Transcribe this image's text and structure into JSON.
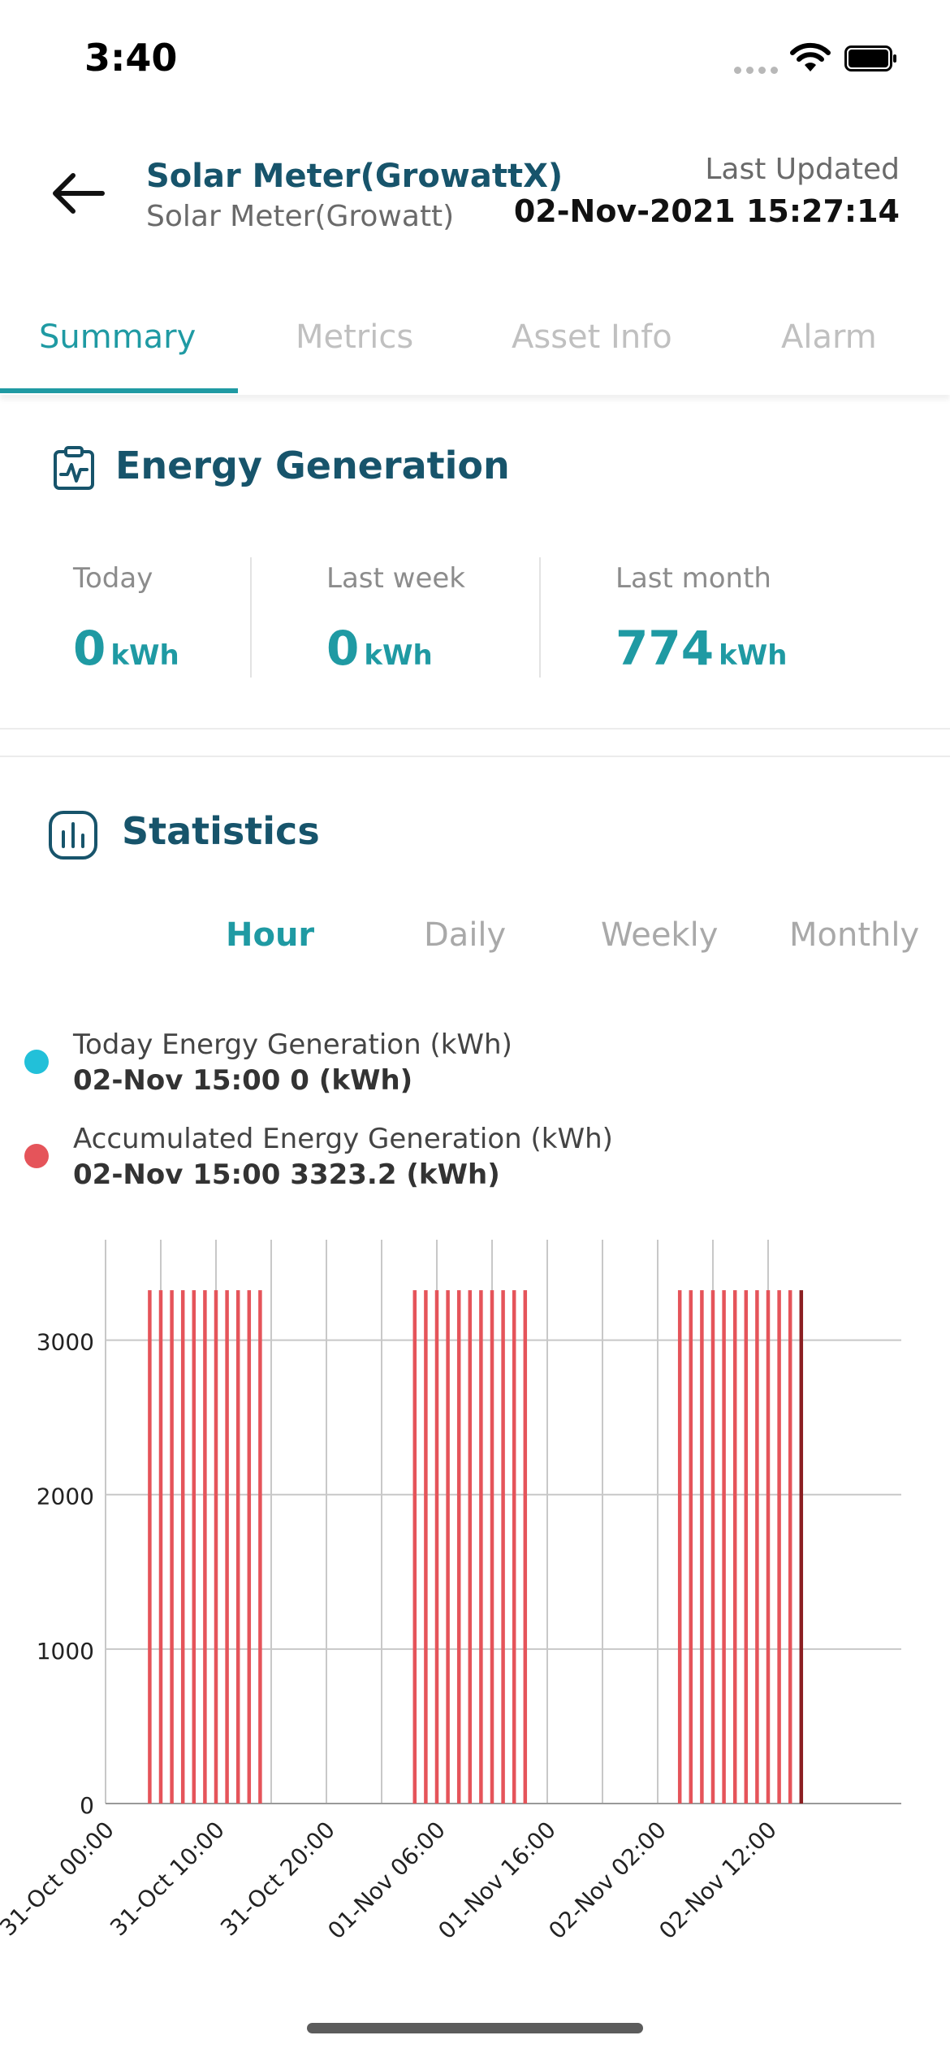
{
  "status_bar": {
    "time": "3:40"
  },
  "header": {
    "title": "Solar Meter(GrowattX)",
    "subtitle": "Solar Meter(Growatt)",
    "last_updated_label": "Last Updated",
    "last_updated_value": "02-Nov-2021 15:27:14"
  },
  "tabs": [
    "Summary",
    "Metrics",
    "Asset Info",
    "Alarm"
  ],
  "active_tab": "Summary",
  "energy_generation": {
    "title": "Energy Generation",
    "stats": [
      {
        "label": "Today",
        "value": "0",
        "unit": "kWh"
      },
      {
        "label": "Last week",
        "value": "0",
        "unit": "kWh"
      },
      {
        "label": "Last month",
        "value": "774",
        "unit": "kWh"
      }
    ]
  },
  "statistics": {
    "title": "Statistics",
    "periods": [
      "Hour",
      "Daily",
      "Weekly",
      "Monthly"
    ],
    "active_period": "Hour",
    "legend": [
      {
        "name": "Today Energy Generation (kWh)",
        "value": "02-Nov 15:00 0 (kWh)",
        "color": "#22c0d9"
      },
      {
        "name": "Accumulated Energy Generation (kWh)",
        "value": "02-Nov 15:00 3323.2 (kWh)",
        "color": "#e5545a"
      }
    ]
  },
  "chart_data": {
    "type": "bar",
    "x_tick_labels": [
      "31-Oct 00:00",
      "31-Oct 10:00",
      "31-Oct 20:00",
      "01-Nov 06:00",
      "01-Nov 16:00",
      "02-Nov 02:00",
      "02-Nov 12:00"
    ],
    "y_ticks": [
      0,
      1000,
      2000,
      3000
    ],
    "ylim": [
      0,
      3650
    ],
    "grid": true,
    "series": [
      {
        "name": "Accumulated Energy Generation (kWh)",
        "color": "#e5545a",
        "highlight_color": "#8b1f22",
        "groups": [
          {
            "start": "31-Oct 04:00",
            "end": "31-Oct 14:00",
            "value": 3323.2
          },
          {
            "start": "01-Nov 04:00",
            "end": "01-Nov 14:00",
            "value": 3323.2
          },
          {
            "start": "02-Nov 04:00",
            "end": "02-Nov 15:00",
            "value": 3323.2
          }
        ]
      },
      {
        "name": "Today Energy Generation (kWh)",
        "color": "#22c0d9",
        "value": 0
      }
    ]
  }
}
